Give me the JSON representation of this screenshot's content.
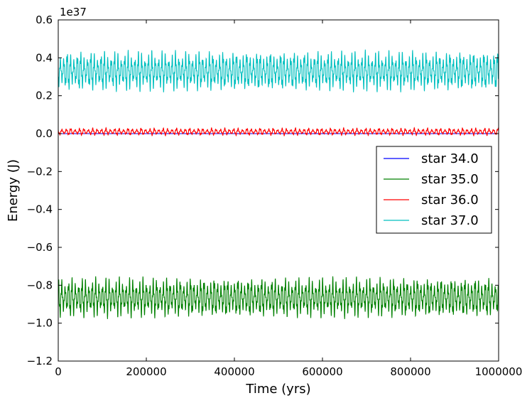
{
  "chart_data": {
    "type": "line",
    "xlabel": "Time (yrs)",
    "ylabel": "Energy (J)",
    "offset_text": "1e37",
    "xlim": [
      0,
      1000000
    ],
    "ylim": [
      -1.2,
      0.6
    ],
    "x_ticks": [
      0,
      200000,
      400000,
      600000,
      800000,
      1000000
    ],
    "x_tick_labels": [
      "0",
      "200000",
      "400000",
      "600000",
      "800000",
      "1000000"
    ],
    "y_ticks": [
      -1.2,
      -1.0,
      -0.8,
      -0.6,
      -0.4,
      -0.2,
      0.0,
      0.2,
      0.4,
      0.6
    ],
    "y_tick_labels": [
      "−1.2",
      "−1.0",
      "−0.8",
      "−0.6",
      "−0.4",
      "−0.2",
      "0.0",
      "0.2",
      "0.4",
      "0.6"
    ],
    "grid": false,
    "legend_position": "center-right",
    "series": [
      {
        "name": "star 34.0",
        "color": "#0000ff",
        "mean": 0.0,
        "amplitude": 0.0,
        "cycles": 100
      },
      {
        "name": "star 35.0",
        "color": "#008000",
        "mean": -0.865,
        "amplitude": 0.19,
        "cycles": 130
      },
      {
        "name": "star 36.0",
        "color": "#ff0000",
        "mean": 0.01,
        "amplitude": 0.035,
        "cycles": 100
      },
      {
        "name": "star 37.0",
        "color": "#00bfbf",
        "mean": 0.33,
        "amplitude": 0.19,
        "cycles": 130
      }
    ]
  }
}
